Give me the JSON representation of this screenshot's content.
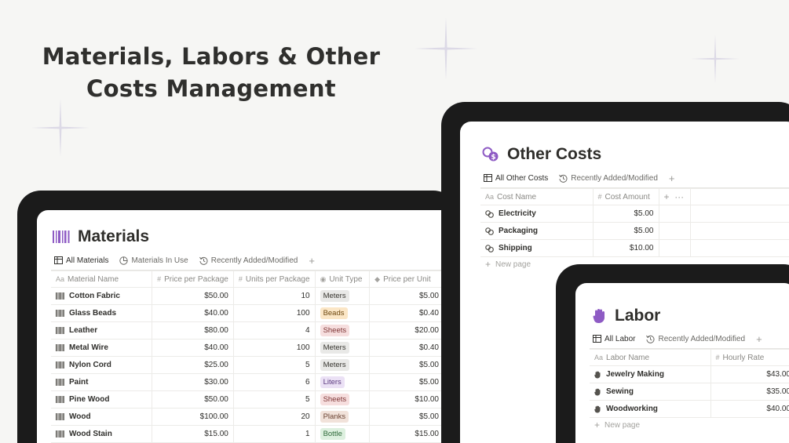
{
  "headline": "Materials, Labors & Other Costs Management",
  "icons": {
    "materials": "barcode-icon",
    "other_costs": "coins-icon",
    "labor": "hand-icon",
    "row_materials": "barcode-icon",
    "row_costs": "coins-icon",
    "row_labor": "hand-icon"
  },
  "materials": {
    "title": "Materials",
    "tabs": [
      {
        "label": "All Materials",
        "icon": "table-icon",
        "active": true
      },
      {
        "label": "Materials In Use",
        "icon": "pie-chart-icon",
        "active": false
      },
      {
        "label": "Recently Added/Modified",
        "icon": "history-icon",
        "active": false
      }
    ],
    "columns": [
      {
        "label": "Material Name",
        "icon": "Aa"
      },
      {
        "label": "Price per Package",
        "icon": "#"
      },
      {
        "label": "Units per Package",
        "icon": "#"
      },
      {
        "label": "Unit Type",
        "icon": "select"
      },
      {
        "label": "Price per Unit",
        "icon": "tag"
      }
    ],
    "rows": [
      {
        "name": "Cotton Fabric",
        "price": "$50.00",
        "units": "10",
        "unit_type": "Meters",
        "ppu": "$5.00"
      },
      {
        "name": "Glass Beads",
        "price": "$40.00",
        "units": "100",
        "unit_type": "Beads",
        "ppu": "$0.40"
      },
      {
        "name": "Leather",
        "price": "$80.00",
        "units": "4",
        "unit_type": "Sheets",
        "ppu": "$20.00"
      },
      {
        "name": "Metal Wire",
        "price": "$40.00",
        "units": "100",
        "unit_type": "Meters",
        "ppu": "$0.40"
      },
      {
        "name": "Nylon Cord",
        "price": "$25.00",
        "units": "5",
        "unit_type": "Meters",
        "ppu": "$5.00"
      },
      {
        "name": "Paint",
        "price": "$30.00",
        "units": "6",
        "unit_type": "Liters",
        "ppu": "$5.00"
      },
      {
        "name": "Pine Wood",
        "price": "$50.00",
        "units": "5",
        "unit_type": "Sheets",
        "ppu": "$10.00"
      },
      {
        "name": "Wood",
        "price": "$100.00",
        "units": "20",
        "unit_type": "Planks",
        "ppu": "$5.00"
      },
      {
        "name": "Wood Stain",
        "price": "$15.00",
        "units": "1",
        "unit_type": "Bottle",
        "ppu": "$15.00"
      }
    ],
    "unit_colors": {
      "Meters": {
        "bg": "#e9e9e7",
        "fg": "#37352f"
      },
      "Beads": {
        "bg": "#fbe6c6",
        "fg": "#6f4a12"
      },
      "Sheets": {
        "bg": "#f6dede",
        "fg": "#7d3434"
      },
      "Liters": {
        "bg": "#ebe1f5",
        "fg": "#5b3a7e"
      },
      "Planks": {
        "bg": "#f1e2da",
        "fg": "#6b4433"
      },
      "Bottle": {
        "bg": "#ddf0df",
        "fg": "#2f6a3a"
      }
    }
  },
  "other_costs": {
    "title": "Other Costs",
    "tabs": [
      {
        "label": "All Other Costs",
        "icon": "table-icon",
        "active": true
      },
      {
        "label": "Recently Added/Modified",
        "icon": "history-icon",
        "active": false
      }
    ],
    "columns": [
      {
        "label": "Cost Name",
        "icon": "Aa"
      },
      {
        "label": "Cost Amount",
        "icon": "#"
      }
    ],
    "rows": [
      {
        "name": "Electricity",
        "amount": "$5.00"
      },
      {
        "name": "Packaging",
        "amount": "$5.00"
      },
      {
        "name": "Shipping",
        "amount": "$10.00"
      }
    ],
    "new_page": "New page"
  },
  "labor": {
    "title": "Labor",
    "tabs": [
      {
        "label": "All Labor",
        "icon": "table-icon",
        "active": true
      },
      {
        "label": "Recently Added/Modified",
        "icon": "history-icon",
        "active": false
      }
    ],
    "columns": [
      {
        "label": "Labor Name",
        "icon": "Aa"
      },
      {
        "label": "Hourly Rate",
        "icon": "#"
      }
    ],
    "rows": [
      {
        "name": "Jewelry Making",
        "rate": "$43.00"
      },
      {
        "name": "Sewing",
        "rate": "$35.00"
      },
      {
        "name": "Woodworking",
        "rate": "$40.00"
      }
    ],
    "new_page": "New page"
  },
  "colors": {
    "accent_purple": "#8e5bc4",
    "device_frame": "#1b1b1b",
    "background": "#f6f6f4"
  }
}
